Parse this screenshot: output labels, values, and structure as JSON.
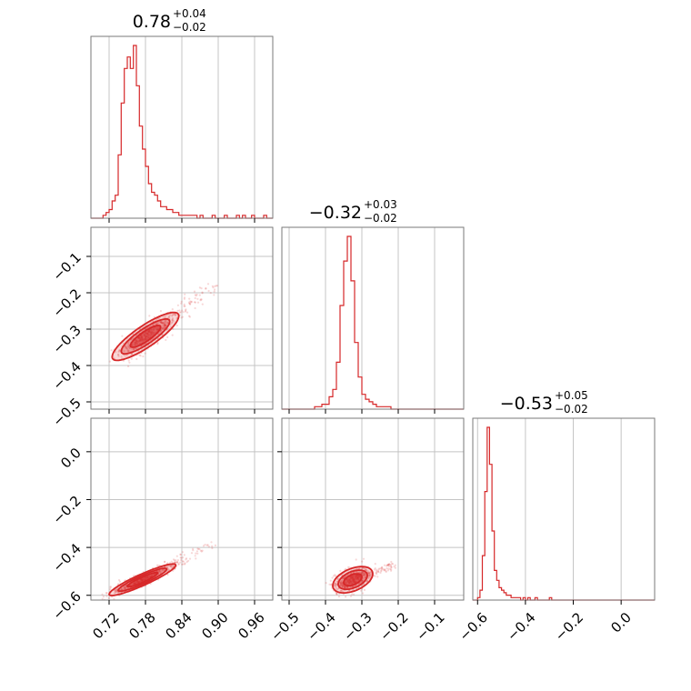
{
  "chart_data": {
    "type": "corner",
    "color": "#d62728",
    "parameters": [
      {
        "range": [
          0.69,
          0.99
        ],
        "ticks": [
          0.72,
          0.78,
          0.84,
          0.9,
          0.96
        ],
        "tick_labels": [
          "0.72",
          "0.78",
          "0.84",
          "0.90",
          "0.96"
        ],
        "title": {
          "median": "0.78",
          "upper": "+0.04",
          "lower": "−0.02"
        },
        "histogram": {
          "bin_start": 0.69,
          "bin_width": 0.005,
          "counts": [
            0,
            0,
            0,
            0,
            1,
            2,
            3,
            6,
            8,
            22,
            40,
            52,
            56,
            52,
            60,
            46,
            32,
            24,
            18,
            12,
            9,
            8,
            6,
            4,
            4,
            3,
            3,
            2,
            2,
            1,
            1,
            1,
            1,
            1,
            1,
            0,
            1,
            0,
            0,
            0,
            1,
            0,
            0,
            0,
            1,
            0,
            0,
            0,
            1,
            0,
            1,
            0,
            0,
            1,
            0,
            0,
            0,
            1,
            0,
            0
          ]
        }
      },
      {
        "range": [
          -0.52,
          -0.02
        ],
        "ticks": [
          -0.5,
          -0.4,
          -0.3,
          -0.2,
          -0.1
        ],
        "tick_labels": [
          "−0.5",
          "−0.4",
          "−0.3",
          "−0.2",
          "−0.1"
        ],
        "title": {
          "median": "−0.32",
          "upper": "+0.03",
          "lower": "−0.02"
        },
        "histogram": {
          "bin_start": -0.52,
          "bin_width": 0.01,
          "counts": [
            0,
            0,
            0,
            0,
            0,
            0,
            0,
            0,
            0,
            1,
            1,
            2,
            2,
            5,
            8,
            19,
            42,
            60,
            70,
            52,
            27,
            13,
            6,
            4,
            3,
            2,
            1,
            1,
            1,
            1,
            0,
            0,
            0,
            0,
            0,
            0,
            0,
            0,
            0,
            0,
            0,
            0,
            0,
            0,
            0,
            0,
            0,
            0,
            0,
            0
          ]
        }
      },
      {
        "range": [
          -0.62,
          0.14
        ],
        "ticks": [
          -0.6,
          -0.4,
          -0.2,
          0.0
        ],
        "tick_labels": [
          "−0.6",
          "−0.4",
          "−0.2",
          "0.0"
        ],
        "tick_labels_rows": [
          "−0.6",
          "−0.4",
          "−0.2",
          "0.0"
        ],
        "title": {
          "median": "−0.53",
          "upper": "+0.05",
          "lower": "−0.02"
        },
        "histogram": {
          "bin_start": -0.62,
          "bin_width": 0.01,
          "counts": [
            0,
            0,
            1,
            4,
            18,
            44,
            70,
            55,
            28,
            12,
            8,
            5,
            4,
            3,
            2,
            2,
            1,
            1,
            1,
            1,
            0,
            1,
            0,
            1,
            0,
            0,
            1,
            0,
            0,
            0,
            0,
            0,
            1,
            0,
            0,
            0,
            0,
            0,
            0,
            0,
            0,
            0,
            0,
            0,
            0,
            0,
            0,
            0,
            0,
            0,
            0,
            0,
            0,
            0,
            0,
            0,
            0,
            0,
            0,
            0,
            0,
            0,
            0,
            0,
            0,
            0,
            0,
            0,
            0,
            0,
            0,
            0,
            0,
            0,
            0,
            0
          ]
        }
      }
    ],
    "joint": [
      {
        "x_param": 0,
        "y_param": 1,
        "mean": [
          0.78,
          -0.32
        ],
        "std": [
          0.025,
          0.03
        ],
        "corr": 0.85
      },
      {
        "x_param": 0,
        "y_param": 2,
        "mean": [
          0.775,
          -0.535
        ],
        "std": [
          0.025,
          0.03
        ],
        "corr": 0.92
      },
      {
        "x_param": 1,
        "y_param": 2,
        "mean": [
          -0.325,
          -0.535
        ],
        "std": [
          0.025,
          0.025
        ],
        "corr": 0.45
      }
    ],
    "contour_levels": [
      1.0,
      1.6,
      2.2
    ]
  }
}
